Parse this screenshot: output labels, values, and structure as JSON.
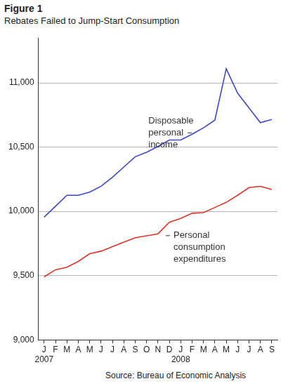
{
  "chart_data": {
    "type": "line",
    "title": "Figure 1",
    "subtitle": "Rebates Failed to Jump-Start Consumption",
    "source": "Source: Bureau of Economic Analysis",
    "categories": [
      "J",
      "F",
      "M",
      "A",
      "M",
      "J",
      "J",
      "A",
      "S",
      "O",
      "N",
      "D",
      "J",
      "F",
      "M",
      "A",
      "M",
      "J",
      "J",
      "A",
      "S"
    ],
    "years": [
      "2007",
      null,
      null,
      null,
      null,
      null,
      null,
      null,
      null,
      null,
      null,
      null,
      "2008",
      null,
      null,
      null,
      null,
      null,
      null,
      null,
      null
    ],
    "series": [
      {
        "name": "Disposable personal income",
        "color": "#3b47c4",
        "values": [
          9955,
          10040,
          10125,
          10125,
          10150,
          10195,
          10265,
          10345,
          10425,
          10460,
          10505,
          10555,
          10555,
          10600,
          10650,
          10710,
          11110,
          10920,
          10805,
          10690,
          10715
        ]
      },
      {
        "name": "Personal consumption expenditures",
        "color": "#e0312b",
        "values": [
          9490,
          9545,
          9565,
          9610,
          9670,
          9690,
          9725,
          9760,
          9795,
          9810,
          9825,
          9915,
          9945,
          9985,
          9990,
          10030,
          10070,
          10125,
          10185,
          10195,
          10170
        ]
      }
    ],
    "ylim": [
      9000,
      11350
    ],
    "yticks": [
      {
        "value": 9000,
        "label": "9,000"
      },
      {
        "value": 9500,
        "label": "9,500"
      },
      {
        "value": 10000,
        "label": "10,000"
      },
      {
        "value": 10500,
        "label": "10,500"
      },
      {
        "value": 11000,
        "label": "11,000"
      }
    ],
    "grid": true,
    "legend": false
  }
}
